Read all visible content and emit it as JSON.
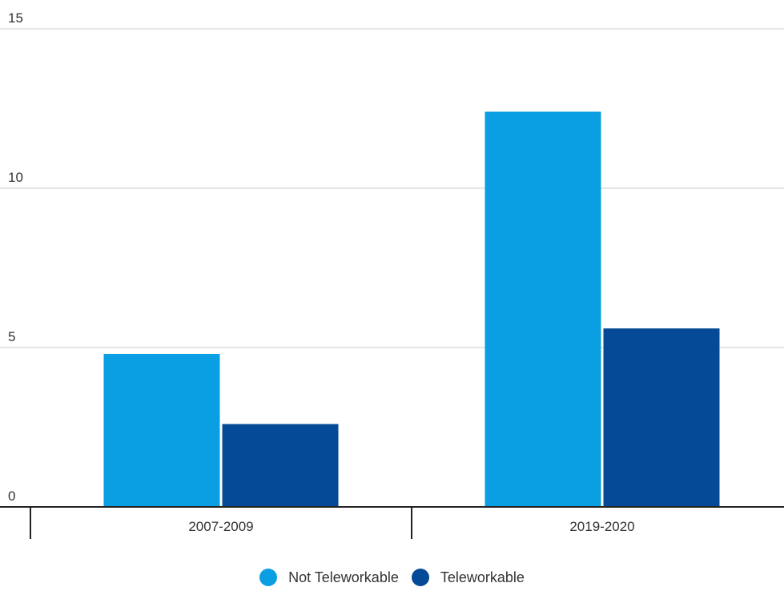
{
  "chart_data": {
    "type": "bar",
    "categories": [
      "2007-2009",
      "2019-2020"
    ],
    "series": [
      {
        "name": "Not Teleworkable",
        "color": "#0a9ee2",
        "values": [
          4.8,
          12.4
        ]
      },
      {
        "name": "Teleworkable",
        "color": "#054a96",
        "values": [
          2.6,
          5.6
        ]
      }
    ],
    "ylim": [
      0,
      15
    ],
    "yticks": [
      0,
      5,
      10,
      15
    ],
    "ytick_labels": [
      "0",
      "5",
      "10",
      "15"
    ],
    "grid": true,
    "legend_position": "bottom"
  }
}
